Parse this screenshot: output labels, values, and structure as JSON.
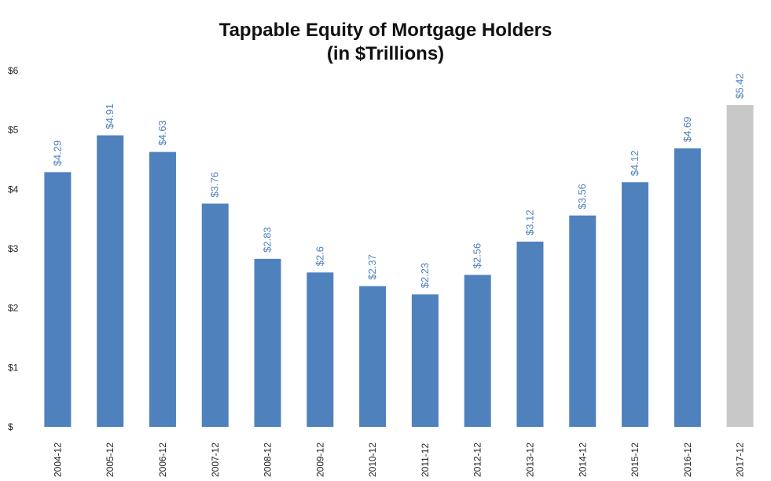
{
  "chart_data": {
    "type": "bar",
    "title": "Tappable Equity of Mortgage Holders",
    "subtitle": "(in $Trillions)",
    "xlabel": "",
    "ylabel": "",
    "categories": [
      "2004-12",
      "2005-12",
      "2006-12",
      "2007-12",
      "2008-12",
      "2009-12",
      "2010-12",
      "2011-12",
      "2012-12",
      "2013-12",
      "2014-12",
      "2015-12",
      "2016-12",
      "2017-12"
    ],
    "values": [
      4.29,
      4.91,
      4.63,
      3.76,
      2.83,
      2.6,
      2.37,
      2.23,
      2.56,
      3.12,
      3.56,
      4.12,
      4.69,
      5.42
    ],
    "data_labels": [
      "$4.29",
      "$4.91",
      "$4.63",
      "$3.76",
      "$2.83",
      "$2.6",
      "$2.37",
      "$2.23",
      "$2.56",
      "$3.12",
      "$3.56",
      "$4.12",
      "$4.69",
      "$5.42"
    ],
    "y_ticks": [
      0,
      1,
      2,
      3,
      4,
      5,
      6
    ],
    "y_tick_labels": [
      "$",
      "$1",
      "$2",
      "$3",
      "$4",
      "$5",
      "$6"
    ],
    "ylim": [
      0,
      6
    ],
    "grid": false,
    "legend": "none",
    "colors": {
      "bar": "#4f81bd",
      "bar_highlight": "#c8c8c8",
      "label": "#4f81bd"
    },
    "highlight_index": 13
  }
}
